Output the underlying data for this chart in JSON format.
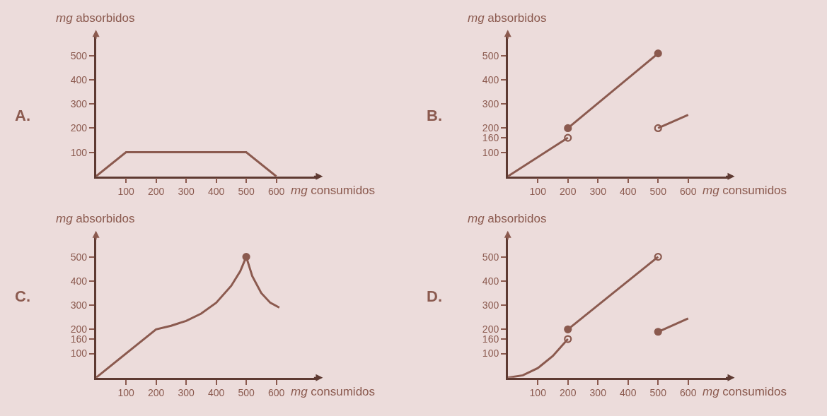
{
  "chart_data": [
    {
      "type": "line",
      "title": "A.",
      "xlabel": "mg consumidos",
      "ylabel": "mg absorbidos",
      "xlim": [
        0,
        740
      ],
      "ylim": [
        0,
        590
      ],
      "xticks": [
        100,
        200,
        300,
        400,
        500,
        600
      ],
      "yticks": [
        100,
        200,
        300,
        400,
        500
      ],
      "series": [
        {
          "color": "#8b5a4f",
          "marker": "none",
          "x": [
            0,
            100,
            500,
            600
          ],
          "values": [
            0,
            100,
            100,
            0
          ]
        }
      ]
    },
    {
      "type": "line",
      "title": "B.",
      "xlabel": "mg consumidos",
      "ylabel": "mg absorbidos",
      "xlim": [
        0,
        740
      ],
      "ylim": [
        0,
        590
      ],
      "xticks": [
        100,
        200,
        300,
        400,
        500,
        600
      ],
      "yticks": [
        100,
        160,
        200,
        300,
        400,
        500
      ],
      "series": [
        {
          "color": "#8b5a4f",
          "marker": "none",
          "x": [
            0,
            200
          ],
          "values": [
            0,
            160
          ]
        },
        {
          "color": "#8b5a4f",
          "marker": "none",
          "x": [
            200,
            500
          ],
          "values": [
            200,
            510
          ]
        },
        {
          "color": "#8b5a4f",
          "marker": "none",
          "x": [
            500,
            600
          ],
          "values": [
            200,
            255
          ]
        },
        {
          "type": "scatter",
          "color": "#8b5a4f",
          "marker": "circle",
          "x": [
            200,
            500
          ],
          "values": [
            200,
            510
          ]
        },
        {
          "type": "scatter",
          "color": "#8b5a4f",
          "marker": "circle-open",
          "x": [
            200,
            500
          ],
          "values": [
            160,
            200
          ]
        }
      ]
    },
    {
      "type": "line",
      "title": "C.",
      "xlabel": "mg consumidos",
      "ylabel": "mg absorbidos",
      "xlim": [
        0,
        740
      ],
      "ylim": [
        0,
        590
      ],
      "xticks": [
        100,
        200,
        300,
        400,
        500,
        600
      ],
      "yticks": [
        100,
        160,
        200,
        300,
        400,
        500
      ],
      "series": [
        {
          "color": "#8b5a4f",
          "marker": "none",
          "x": [
            0,
            200,
            250,
            300,
            350,
            400,
            450,
            480,
            500
          ],
          "values": [
            0,
            200,
            215,
            235,
            265,
            310,
            380,
            440,
            500
          ]
        },
        {
          "color": "#8b5a4f",
          "marker": "none",
          "x": [
            500,
            520,
            550,
            580,
            610
          ],
          "values": [
            500,
            420,
            350,
            310,
            290
          ]
        },
        {
          "type": "scatter",
          "color": "#8b5a4f",
          "marker": "circle",
          "x": [
            500
          ],
          "values": [
            500
          ]
        }
      ]
    },
    {
      "type": "line",
      "title": "D.",
      "xlabel": "mg consumidos",
      "ylabel": "mg absorbidos",
      "xlim": [
        0,
        740
      ],
      "ylim": [
        0,
        590
      ],
      "xticks": [
        100,
        200,
        300,
        400,
        500,
        600
      ],
      "yticks": [
        100,
        160,
        200,
        300,
        400,
        500
      ],
      "series": [
        {
          "color": "#8b5a4f",
          "marker": "none",
          "x": [
            0,
            50,
            100,
            150,
            200
          ],
          "values": [
            0,
            10,
            40,
            90,
            160
          ]
        },
        {
          "color": "#8b5a4f",
          "marker": "none",
          "x": [
            200,
            500
          ],
          "values": [
            200,
            500
          ]
        },
        {
          "color": "#8b5a4f",
          "marker": "none",
          "x": [
            500,
            600
          ],
          "values": [
            190,
            245
          ]
        },
        {
          "type": "scatter",
          "color": "#8b5a4f",
          "marker": "circle",
          "x": [
            200,
            500
          ],
          "values": [
            200,
            190
          ]
        },
        {
          "type": "scatter",
          "color": "#8b5a4f",
          "marker": "circle-open",
          "x": [
            200,
            500
          ],
          "values": [
            160,
            500
          ]
        }
      ]
    }
  ]
}
